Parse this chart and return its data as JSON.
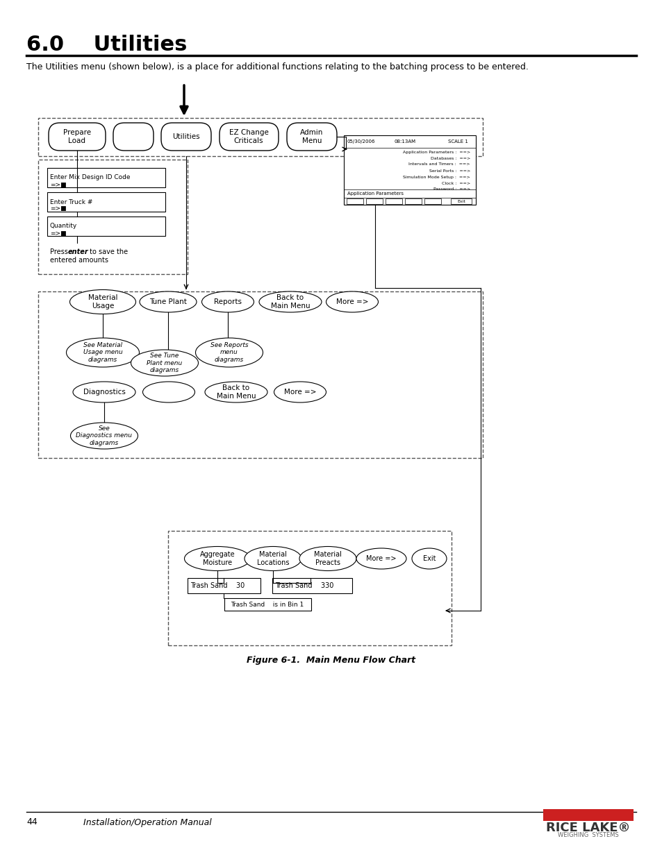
{
  "title": "6.0    Utilities",
  "subtitle": "The Utilities menu (shown below), is a place for additional functions relating to the batching process to be entered.",
  "footer_num": "44",
  "footer_text": "Installation/Operation Manual",
  "figure_caption": "Figure 6-1.  Main Menu Flow Chart",
  "bg_color": "#ffffff",
  "text_color": "#000000"
}
